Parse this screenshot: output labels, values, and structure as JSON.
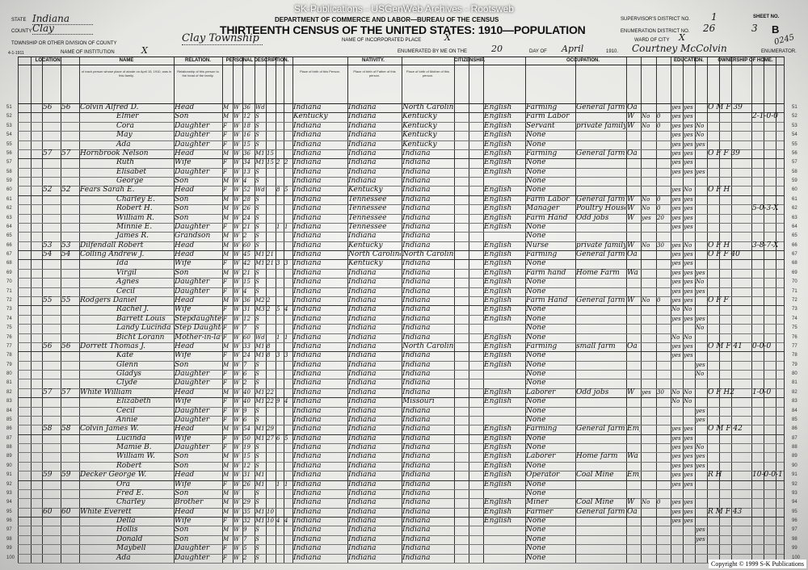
{
  "banner": "SK-Publications - USGenWeb Archives - Rootsweb",
  "header": {
    "department": "DEPARTMENT OF COMMERCE AND LABOR—BUREAU OF THE CENSUS",
    "title": "THIRTEENTH CENSUS OF THE UNITED STATES: 1910—POPULATION",
    "state_label": "STATE",
    "state": "Indiana",
    "county_label": "COUNTY",
    "county": "Clay",
    "township_label": "TOWNSHIP OR OTHER DIVISION OF COUNTY",
    "township": "Clay Township",
    "place_label": "NAME OF INCORPORATED PLACE",
    "place": "X",
    "institution_label": "NAME OF INSTITUTION",
    "institution": "X",
    "ward_label": "WARD OF CITY",
    "ward": "X",
    "supervisor_label": "SUPERVISOR'S DISTRICT NO.",
    "supervisor": "1",
    "enumeration_label": "ENUMERATION DISTRICT NO.",
    "enumeration": "26",
    "sheet_label": "SHEET NO.",
    "sheet": "3",
    "sheet_letter": "B",
    "enumerated_label": "ENUMERATED BY ME ON THE",
    "day": "20",
    "day_label": "DAY OF",
    "month": "April",
    "year": "1910.",
    "enumerator": "Courtney McColvin",
    "enumerator_label": "ENUMERATOR.",
    "stamp": "0245",
    "form_no": "4-1-1911"
  },
  "column_groups": [
    "LOCATION.",
    "NAME",
    "RELATION.",
    "PERSONAL DESCRIPTION.",
    "NATIVITY.",
    "CITIZENSHIP.",
    "OCCUPATION.",
    "EDUCATION.",
    "OWNERSHIP OF HOME."
  ],
  "column_notes": {
    "name": "of each person whose place of abode on April 15, 1910, was in this family.",
    "relation": "Relationship of this person to the head of the family.",
    "bp_self": "Place of birth of this Person.",
    "bp_father": "Place of birth of Father of this person.",
    "bp_mother": "Place of birth of Mother of this person."
  },
  "columns": [
    "line",
    "dwelling",
    "family",
    "name",
    "relation",
    "sex",
    "race",
    "age",
    "marital",
    "years_married",
    "children_born",
    "children_living",
    "bp_self",
    "bp_father",
    "bp_mother",
    "language",
    "occupation",
    "industry",
    "employer",
    "out_of_work",
    "weeks",
    "read",
    "write",
    "school",
    "home",
    "extra"
  ],
  "rows": [
    [
      "51",
      "56",
      "56",
      "Colvin Alfred D.",
      "Head",
      "M",
      "W",
      "36",
      "Wd",
      "",
      "",
      "",
      "Indiana",
      "Indiana",
      "North Carolina",
      "English",
      "Farming",
      "General farm",
      "Oa",
      "",
      "",
      "yes",
      "yes",
      "",
      "O M F 39",
      ""
    ],
    [
      "52",
      "",
      "",
      "Elmer",
      "Son",
      "M",
      "W",
      "12",
      "S",
      "",
      "",
      "",
      "Kentucky",
      "Indiana",
      "Kentucky",
      "English",
      "Farm Labor",
      "",
      "W",
      "No",
      "0",
      "yes",
      "yes",
      "",
      "",
      "2-1-0-0"
    ],
    [
      "53",
      "",
      "",
      "Cora",
      "Daughter",
      "F",
      "W",
      "18",
      "S",
      "",
      "",
      "",
      "Indiana",
      "Indiana",
      "Kentucky",
      "English",
      "Servant",
      "private family",
      "W",
      "No",
      "0",
      "yes",
      "yes",
      "No",
      "",
      ""
    ],
    [
      "54",
      "",
      "",
      "May",
      "Daughter",
      "F",
      "W",
      "16",
      "S",
      "",
      "",
      "",
      "Indiana",
      "Indiana",
      "Kentucky",
      "English",
      "None",
      "",
      "",
      "",
      "",
      "yes",
      "yes",
      "No",
      "",
      ""
    ],
    [
      "55",
      "",
      "",
      "Ada",
      "Daughter",
      "F",
      "W",
      "15",
      "S",
      "",
      "",
      "",
      "Indiana",
      "Indiana",
      "Kentucky",
      "English",
      "None",
      "",
      "",
      "",
      "",
      "yes",
      "yes",
      "yes",
      "",
      ""
    ],
    [
      "56",
      "57",
      "57",
      "Hornbrook Nelson",
      "Head",
      "M",
      "W",
      "36",
      "M1",
      "15",
      "",
      "",
      "Indiana",
      "Indiana",
      "Indiana",
      "English",
      "Farming",
      "General farm",
      "Oa",
      "",
      "",
      "yes",
      "yes",
      "",
      "O F F 39",
      ""
    ],
    [
      "57",
      "",
      "",
      "Ruth",
      "Wife",
      "F",
      "W",
      "34",
      "M1",
      "15",
      "2",
      "2",
      "Indiana",
      "Indiana",
      "Indiana",
      "English",
      "None",
      "",
      "",
      "",
      "",
      "yes",
      "yes",
      "",
      "",
      ""
    ],
    [
      "58",
      "",
      "",
      "Elisabet",
      "Daughter",
      "F",
      "W",
      "13",
      "S",
      "",
      "",
      "",
      "Indiana",
      "Indiana",
      "Indiana",
      "English",
      "None",
      "",
      "",
      "",
      "",
      "yes",
      "yes",
      "yes",
      "",
      ""
    ],
    [
      "59",
      "",
      "",
      "George",
      "Son",
      "M",
      "W",
      "4",
      "S",
      "",
      "",
      "",
      "Indiana",
      "Indiana",
      "Indiana",
      "",
      "None",
      "",
      "",
      "",
      "",
      "",
      "",
      "",
      "",
      ""
    ],
    [
      "60",
      "52",
      "52",
      "Fears Sarah E.",
      "Head",
      "F",
      "W",
      "52",
      "Wd",
      "",
      "8",
      "5",
      "Indiana",
      "Kentucky",
      "Indiana",
      "English",
      "None",
      "",
      "",
      "",
      "",
      "yes",
      "No",
      "",
      "O F H",
      ""
    ],
    [
      "61",
      "",
      "",
      "Charley E.",
      "Son",
      "M",
      "W",
      "28",
      "S",
      "",
      "",
      "",
      "Indiana",
      "Tennessee",
      "Indiana",
      "English",
      "Farm Labor",
      "General farm",
      "W",
      "No",
      "0",
      "yes",
      "yes",
      "",
      "",
      ""
    ],
    [
      "62",
      "",
      "",
      "Robert H.",
      "Son",
      "M",
      "W",
      "26",
      "S",
      "",
      "",
      "",
      "Indiana",
      "Tennessee",
      "Indiana",
      "English",
      "Manager",
      "Poultry House",
      "W",
      "No",
      "0",
      "yes",
      "yes",
      "",
      "",
      "5-0-3-X"
    ],
    [
      "63",
      "",
      "",
      "William R.",
      "Son",
      "M",
      "W",
      "24",
      "S",
      "",
      "",
      "",
      "Indiana",
      "Tennessee",
      "Indiana",
      "English",
      "Farm Hand",
      "Odd jobs",
      "W",
      "yes",
      "20",
      "yes",
      "yes",
      "",
      "",
      ""
    ],
    [
      "64",
      "",
      "",
      "Minnie E.",
      "Daughter",
      "F",
      "W",
      "21",
      "S",
      "",
      "1",
      "1",
      "Indiana",
      "Tennessee",
      "Indiana",
      "English",
      "None",
      "",
      "",
      "",
      "",
      "yes",
      "yes",
      "",
      "",
      ""
    ],
    [
      "65",
      "",
      "",
      "James R.",
      "Grandson",
      "M",
      "W",
      "2",
      "S",
      "",
      "",
      "",
      "Indiana",
      "Indiana",
      "Indiana",
      "",
      "None",
      "",
      "",
      "",
      "",
      "",
      "",
      "",
      "",
      ""
    ],
    [
      "66",
      "53",
      "53",
      "Dilfendall Robert",
      "Head",
      "M",
      "W",
      "60",
      "S",
      "",
      "",
      "",
      "Indiana",
      "Kentucky",
      "Indiana",
      "English",
      "Nurse",
      "private family",
      "W",
      "No",
      "30",
      "yes",
      "No",
      "",
      "O F H",
      "3-8-7-X"
    ],
    [
      "67",
      "54",
      "54",
      "Colling Andrew J.",
      "Head",
      "M",
      "W",
      "45",
      "M1",
      "21",
      "",
      "",
      "Indiana",
      "North Carolina",
      "North Carolina",
      "English",
      "Farming",
      "General farm",
      "Oa",
      "",
      "",
      "yes",
      "yes",
      "",
      "O F F 40",
      ""
    ],
    [
      "68",
      "",
      "",
      "Ida",
      "Wife",
      "F",
      "W",
      "42",
      "M1",
      "21",
      "3",
      "3",
      "Indiana",
      "Kentucky",
      "Indiana",
      "English",
      "None",
      "",
      "",
      "",
      "",
      "yes",
      "yes",
      "",
      "",
      ""
    ],
    [
      "69",
      "",
      "",
      "Virgil",
      "Son",
      "M",
      "W",
      "21",
      "S",
      "",
      "",
      "",
      "Indiana",
      "Indiana",
      "Indiana",
      "English",
      "Farm hand",
      "Home Farm",
      "Wa",
      "",
      "",
      "yes",
      "yes",
      "yes",
      "",
      ""
    ],
    [
      "70",
      "",
      "",
      "Agnes",
      "Daughter",
      "F",
      "W",
      "15",
      "S",
      "",
      "",
      "",
      "Indiana",
      "Indiana",
      "Indiana",
      "English",
      "None",
      "",
      "",
      "",
      "",
      "yes",
      "yes",
      "No",
      "",
      ""
    ],
    [
      "71",
      "",
      "",
      "Cecil",
      "Daughter",
      "F",
      "W",
      "4",
      "S",
      "",
      "",
      "",
      "Indiana",
      "Indiana",
      "Indiana",
      "English",
      "None",
      "",
      "",
      "",
      "",
      "yes",
      "yes",
      "yes",
      "",
      ""
    ],
    [
      "72",
      "55",
      "55",
      "Rodgers Daniel",
      "Head",
      "M",
      "W",
      "36",
      "M2",
      "2",
      "",
      "",
      "Indiana",
      "Indiana",
      "Indiana",
      "English",
      "Farm Hand",
      "General farm",
      "W",
      "No",
      "0",
      "yes",
      "yes",
      "",
      "O F F",
      ""
    ],
    [
      "73",
      "",
      "",
      "Rachel J.",
      "Wife",
      "F",
      "W",
      "31",
      "M3",
      "2",
      "5",
      "4",
      "Indiana",
      "Indiana",
      "Indiana",
      "English",
      "None",
      "",
      "",
      "",
      "",
      "No",
      "No",
      "",
      "",
      ""
    ],
    [
      "74",
      "",
      "",
      "Barrett Louis",
      "Stepdaughter",
      "F",
      "W",
      "12",
      "S",
      "",
      "",
      "",
      "Indiana",
      "Indiana",
      "Indiana",
      "English",
      "None",
      "",
      "",
      "",
      "",
      "yes",
      "yes",
      "yes",
      "",
      ""
    ],
    [
      "75",
      "",
      "",
      "Landy Lucinda",
      "Step Daughter",
      "F",
      "W",
      "7",
      "S",
      "",
      "",
      "",
      "Indiana",
      "Indiana",
      "Indiana",
      "",
      "None",
      "",
      "",
      "",
      "",
      "",
      "",
      "No",
      "",
      ""
    ],
    [
      "76",
      "",
      "",
      "Bicht Lorann",
      "Mother-in-law",
      "F",
      "W",
      "60",
      "Wd",
      "",
      "1",
      "1",
      "Indiana",
      "Indiana",
      "Indiana",
      "English",
      "None",
      "",
      "",
      "",
      "",
      "No",
      "No",
      "",
      "",
      ""
    ],
    [
      "77",
      "56",
      "56",
      "Dorrett Thomas J.",
      "Head",
      "M",
      "W",
      "33",
      "M1",
      "8",
      "",
      "",
      "Indiana",
      "Indiana",
      "North Carolina",
      "English",
      "Farming",
      "small farm",
      "Oa",
      "",
      "",
      "yes",
      "yes",
      "",
      "O M F 41",
      "0-0-0"
    ],
    [
      "78",
      "",
      "",
      "Kate",
      "Wife",
      "F",
      "W",
      "24",
      "M1",
      "8",
      "3",
      "3",
      "Indiana",
      "Indiana",
      "Indiana",
      "English",
      "None",
      "",
      "",
      "",
      "",
      "yes",
      "yes",
      "",
      "",
      ""
    ],
    [
      "79",
      "",
      "",
      "Glenn",
      "Son",
      "M",
      "W",
      "7",
      "S",
      "",
      "",
      "",
      "Indiana",
      "Indiana",
      "Indiana",
      "English",
      "None",
      "",
      "",
      "",
      "",
      "",
      "",
      "yes",
      "",
      ""
    ],
    [
      "80",
      "",
      "",
      "Gladys",
      "Daughter",
      "F",
      "W",
      "6",
      "S",
      "",
      "",
      "",
      "Indiana",
      "Indiana",
      "Indiana",
      "",
      "None",
      "",
      "",
      "",
      "",
      "",
      "",
      "No",
      "",
      ""
    ],
    [
      "81",
      "",
      "",
      "Clyde",
      "Daughter",
      "F",
      "W",
      "2",
      "S",
      "",
      "",
      "",
      "Indiana",
      "Indiana",
      "Indiana",
      "",
      "None",
      "",
      "",
      "",
      "",
      "",
      "",
      "",
      "",
      ""
    ],
    [
      "82",
      "57",
      "57",
      "White William",
      "Head",
      "M",
      "W",
      "40",
      "M1",
      "22",
      "",
      "",
      "Indiana",
      "Indiana",
      "Indiana",
      "English",
      "Laborer",
      "Odd jobs",
      "W",
      "yes",
      "30",
      "No",
      "No",
      "",
      "O F H2",
      "1-0-0"
    ],
    [
      "83",
      "",
      "",
      "Elizabeth",
      "Wife",
      "F",
      "W",
      "40",
      "M1",
      "22",
      "9",
      "4",
      "Indiana",
      "Indiana",
      "Missouri",
      "English",
      "None",
      "",
      "",
      "",
      "",
      "No",
      "No",
      "",
      "",
      ""
    ],
    [
      "84",
      "",
      "",
      "Cecil",
      "Daughter",
      "F",
      "W",
      "9",
      "S",
      "",
      "",
      "",
      "Indiana",
      "Indiana",
      "Indiana",
      "",
      "None",
      "",
      "",
      "",
      "",
      "",
      "",
      "yes",
      "",
      ""
    ],
    [
      "85",
      "",
      "",
      "Annie",
      "Daughter",
      "F",
      "W",
      "6",
      "S",
      "",
      "",
      "",
      "Indiana",
      "Indiana",
      "Indiana",
      "",
      "None",
      "",
      "",
      "",
      "",
      "",
      "",
      "yes",
      "",
      ""
    ],
    [
      "86",
      "58",
      "58",
      "Colvin James W.",
      "Head",
      "M",
      "W",
      "54",
      "M1",
      "29",
      "",
      "",
      "Indiana",
      "Indiana",
      "Indiana",
      "English",
      "Farming",
      "General farm",
      "Emp",
      "",
      "",
      "yes",
      "yes",
      "",
      "O M F 42",
      ""
    ],
    [
      "87",
      "",
      "",
      "Lucinda",
      "Wife",
      "F",
      "W",
      "50",
      "M1",
      "27",
      "6",
      "5",
      "Indiana",
      "Indiana",
      "Indiana",
      "English",
      "None",
      "",
      "",
      "",
      "",
      "yes",
      "yes",
      "",
      "",
      ""
    ],
    [
      "88",
      "",
      "",
      "Mamie B.",
      "Daughter",
      "F",
      "W",
      "19",
      "S",
      "",
      "",
      "",
      "Indiana",
      "Indiana",
      "Indiana",
      "English",
      "None",
      "",
      "",
      "",
      "",
      "yes",
      "yes",
      "No",
      "",
      ""
    ],
    [
      "89",
      "",
      "",
      "William W.",
      "Son",
      "M",
      "W",
      "15",
      "S",
      "",
      "",
      "",
      "Indiana",
      "Indiana",
      "Indiana",
      "English",
      "Laborer",
      "Home farm",
      "Wa",
      "",
      "",
      "yes",
      "yes",
      "yes",
      "",
      ""
    ],
    [
      "90",
      "",
      "",
      "Robert",
      "Son",
      "M",
      "W",
      "12",
      "S",
      "",
      "",
      "",
      "Indiana",
      "Indiana",
      "Indiana",
      "English",
      "None",
      "",
      "",
      "",
      "",
      "yes",
      "yes",
      "yes",
      "",
      ""
    ],
    [
      "91",
      "59",
      "59",
      "Decker George W.",
      "Head",
      "M",
      "W",
      "31",
      "M1",
      "",
      "",
      "",
      "Indiana",
      "Indiana",
      "Indiana",
      "English",
      "Operator",
      "Coal Mine",
      "Emp",
      "",
      "",
      "yes",
      "yes",
      "",
      "R H",
      "10-0-0-1"
    ],
    [
      "92",
      "",
      "",
      "Ora",
      "Wife",
      "F",
      "W",
      "26",
      "M1",
      "",
      "1",
      "1",
      "Indiana",
      "Indiana",
      "Indiana",
      "English",
      "None",
      "",
      "",
      "",
      "",
      "yes",
      "yes",
      "",
      "",
      ""
    ],
    [
      "93",
      "",
      "",
      "Fred E.",
      "Son",
      "M",
      "W",
      "",
      "S",
      "",
      "",
      "",
      "Indiana",
      "Indiana",
      "Indiana",
      "",
      "None",
      "",
      "",
      "",
      "",
      "",
      "",
      "",
      "",
      ""
    ],
    [
      "94",
      "",
      "",
      "Charley",
      "Brother",
      "M",
      "W",
      "29",
      "S",
      "",
      "",
      "",
      "Indiana",
      "Indiana",
      "Indiana",
      "English",
      "Miner",
      "Coal Mine",
      "W",
      "No",
      "0",
      "yes",
      "yes",
      "",
      "",
      ""
    ],
    [
      "95",
      "60",
      "60",
      "White Everett",
      "Head",
      "M",
      "W",
      "35",
      "M1",
      "10",
      "",
      "",
      "Indiana",
      "Indiana",
      "Indiana",
      "English",
      "Farmer",
      "General farm",
      "Oa",
      "",
      "",
      "yes",
      "yes",
      "",
      "R M F 43",
      ""
    ],
    [
      "96",
      "",
      "",
      "Della",
      "Wife",
      "F",
      "W",
      "32",
      "M1",
      "10",
      "4",
      "4",
      "Indiana",
      "Indiana",
      "Indiana",
      "English",
      "None",
      "",
      "",
      "",
      "",
      "yes",
      "yes",
      "",
      "",
      ""
    ],
    [
      "97",
      "",
      "",
      "Hollis",
      "Son",
      "M",
      "W",
      "9",
      "S",
      "",
      "",
      "",
      "Indiana",
      "Indiana",
      "Indiana",
      "",
      "None",
      "",
      "",
      "",
      "",
      "",
      "",
      "yes",
      "",
      ""
    ],
    [
      "98",
      "",
      "",
      "Donald",
      "Son",
      "M",
      "W",
      "7",
      "S",
      "",
      "",
      "",
      "Indiana",
      "Indiana",
      "Indiana",
      "",
      "None",
      "",
      "",
      "",
      "",
      "",
      "",
      "yes",
      "",
      ""
    ],
    [
      "99",
      "",
      "",
      "Maybell",
      "Daughter",
      "F",
      "W",
      "5",
      "S",
      "",
      "",
      "",
      "Indiana",
      "Indiana",
      "Indiana",
      "",
      "None",
      "",
      "",
      "",
      "",
      "",
      "",
      "",
      "",
      ""
    ],
    [
      "100",
      "",
      "",
      "Ada",
      "Daughter",
      "F",
      "W",
      "2",
      "S",
      "",
      "",
      "",
      "Indiana",
      "Indiana",
      "Indiana",
      "",
      "None",
      "",
      "",
      "",
      "",
      "",
      "",
      "",
      "",
      ""
    ]
  ],
  "copyright": "Copyright © 1999 S-K Publications",
  "colors": {
    "paper": "#ececea",
    "ink": "#111111",
    "border": "#2a2a2a"
  }
}
